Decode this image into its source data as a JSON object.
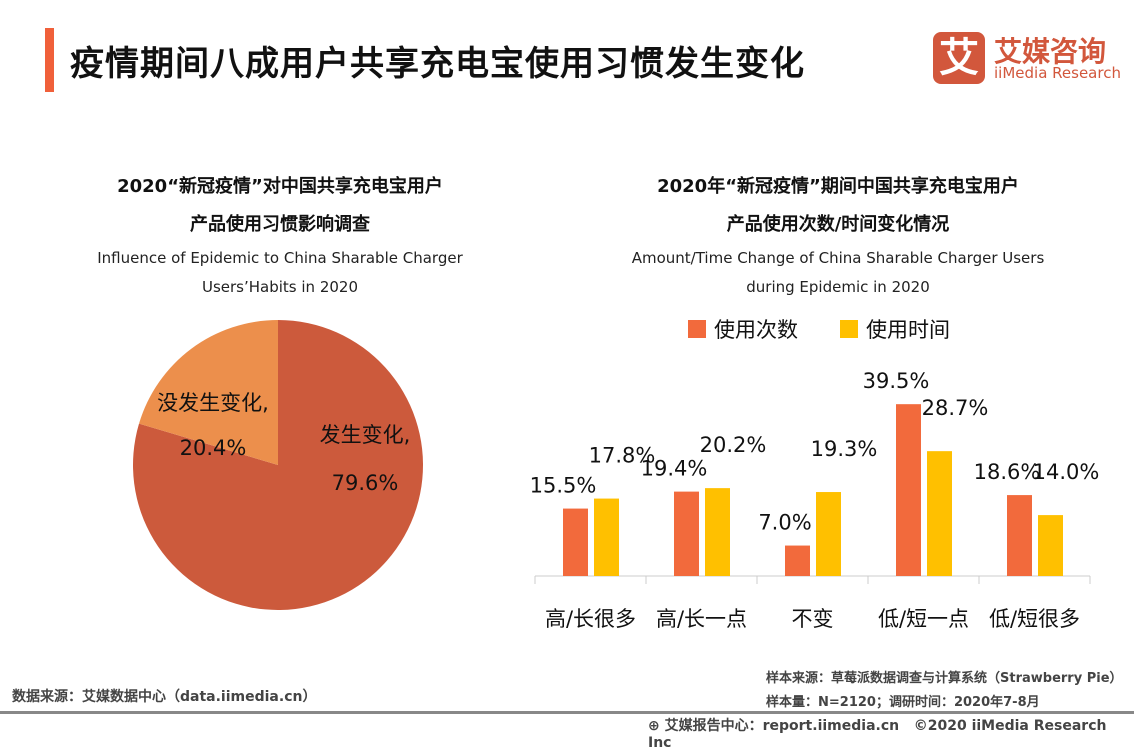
{
  "header": {
    "title": "疫情期间八成用户共享充电宝使用习惯发生变化",
    "logo_mark": "艾",
    "logo_cn": "艾媒咨询",
    "logo_en": "iiMedia Research"
  },
  "colors": {
    "accent": "#f0603a",
    "pie_main": "#cc5a3c",
    "pie_minor": "#ec8f4c",
    "series1": "#f26a3c",
    "series2": "#ffc000"
  },
  "chart_data": [
    {
      "type": "pie",
      "title_cn_1": "2020“新冠疫情”对中国共享充电宝用户",
      "title_cn_2": "产品使用习惯影响调查",
      "title_en_1": "Influence of Epidemic to China Sharable Charger",
      "title_en_2": "Users’Habits  in 2020",
      "slices": [
        {
          "label": "发生变化,",
          "value": 79.6,
          "value_label": "79.6%"
        },
        {
          "label": "没发生变化,",
          "value": 20.4,
          "value_label": "20.4%"
        }
      ]
    },
    {
      "type": "bar",
      "title_cn_1": "2020年“新冠疫情”期间中国共享充电宝用户",
      "title_cn_2": "产品使用次数/时间变化情况",
      "title_en_1": "Amount/Time Change of China Sharable Charger Users",
      "title_en_2": "during Epidemic in 2020",
      "categories": [
        "高/长很多",
        "高/长一点",
        "不变",
        "低/短一点",
        "低/短很多"
      ],
      "series": [
        {
          "name": "使用次数",
          "values": [
            15.5,
            19.4,
            7.0,
            39.5,
            18.6
          ]
        },
        {
          "name": "使用时间",
          "values": [
            17.8,
            20.2,
            19.3,
            28.7,
            14.0
          ]
        }
      ],
      "legend": "top"
    }
  ],
  "footer": {
    "data_source": "数据来源：艾媒数据中心（data.iimedia.cn）",
    "sample_source": "样本来源：草莓派数据调查与计算系统（Strawberry Pie）",
    "sample_size": "样本量：N=2120；调研时间：2020年7-8月",
    "report": "艾媒报告中心：report.iimedia.cn",
    "copyright": "©2020  iiMedia Research  Inc"
  }
}
